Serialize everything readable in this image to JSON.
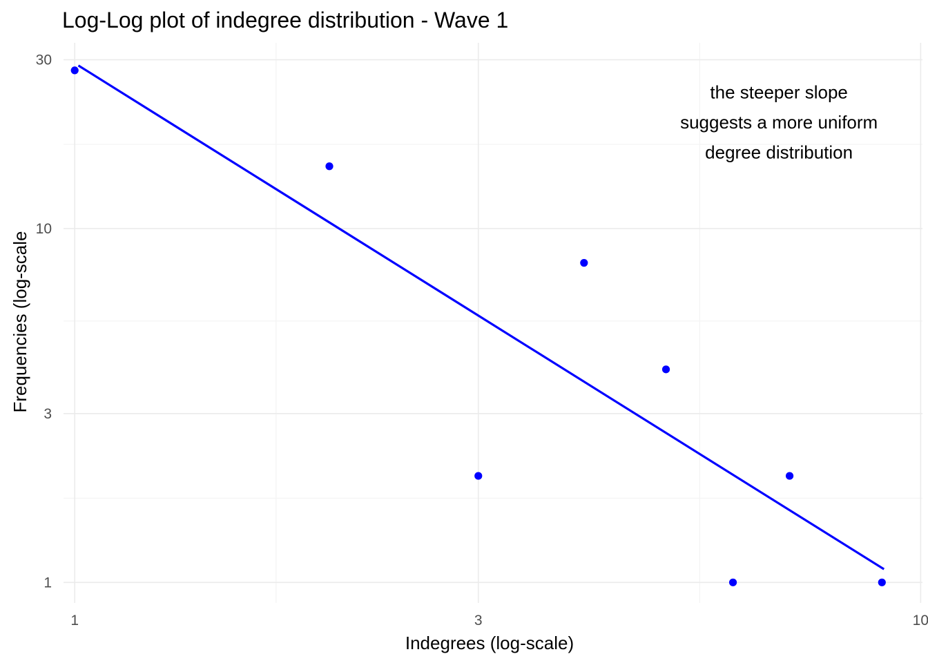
{
  "chart_data": {
    "type": "scatter",
    "title": "Log-Log plot of indegree distribution - Wave 1",
    "xlabel": "Indegrees (log-scale)",
    "ylabel": "Frequencies (log-scale",
    "x_scale": "log10",
    "y_scale": "log10",
    "xlim": [
      0.97,
      10.05
    ],
    "ylim": [
      0.875,
      33.5
    ],
    "x_ticks": [
      1,
      3,
      10
    ],
    "x_tick_labels": [
      "1",
      "3",
      "10"
    ],
    "x_minor_ticks": [
      1.73,
      5.48
    ],
    "y_ticks": [
      1,
      3,
      10,
      30
    ],
    "y_tick_labels": [
      "1",
      "3",
      "10",
      "30"
    ],
    "y_minor_ticks": [
      1.73,
      5.48,
      17.3
    ],
    "grid": true,
    "points": {
      "color": "#0000ff",
      "x": [
        1,
        2,
        3,
        4,
        5,
        6,
        7,
        9
      ],
      "y": [
        28,
        15,
        2,
        8,
        4,
        1,
        2,
        1
      ]
    },
    "fit_line": {
      "color": "#0000ff",
      "x_start": 1.01,
      "y_start": 28.9,
      "x_end": 9.05,
      "y_end": 1.09
    },
    "annotation": {
      "lines": [
        "the steeper slope",
        "suggests a more uniform",
        "degree distribution"
      ],
      "x": 6.8,
      "y": 20
    }
  }
}
